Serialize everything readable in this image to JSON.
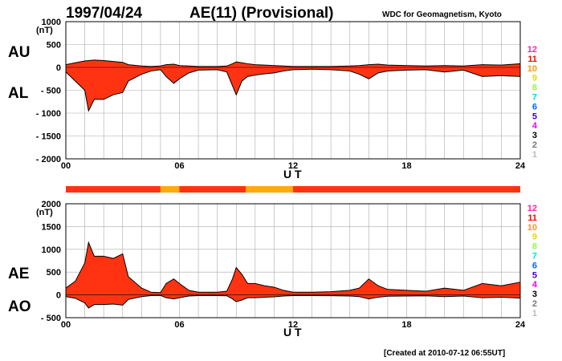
{
  "header": {
    "date": "1997/04/24",
    "title": "AE(11) (Provisional)",
    "source": "WDC for Geomagnetism, Kyoto"
  },
  "footer": {
    "created": "[Created at 2010-07-12 06:55UT]"
  },
  "colors": {
    "high": "#ff3311",
    "low": "#ffaa11",
    "outline": "#000000",
    "grid": "#aaaaaa",
    "hour_levels": [
      "#ff22aa",
      "#ff0000",
      "#ff9900",
      "#dddd00",
      "#88ff44",
      "#00dddd",
      "#0066ff",
      "#4400cc",
      "#ee00ee",
      "#000000",
      "#777777",
      "#bbbbbb"
    ]
  },
  "legend_levels": [
    "12",
    "11",
    "10",
    "9",
    "8",
    "7",
    "6",
    "5",
    "4",
    "3",
    "2",
    "1"
  ],
  "status_bar": [
    {
      "from": 0,
      "to": 5,
      "level": "high"
    },
    {
      "from": 5,
      "to": 6,
      "level": "low"
    },
    {
      "from": 6,
      "to": 9.5,
      "level": "high"
    },
    {
      "from": 9.5,
      "to": 12,
      "level": "low"
    },
    {
      "from": 12,
      "to": 24,
      "level": "high"
    }
  ],
  "chart_data": [
    {
      "type": "area",
      "series_labels": [
        "AU",
        "AL"
      ],
      "xlabel": "U T",
      "ylabel": "(nT)",
      "xlim": [
        0,
        24
      ],
      "ylim": [
        -2000,
        1000
      ],
      "x_ticks": [
        "00",
        "06",
        "12",
        "18",
        "24"
      ],
      "y_ticks": [
        "1000",
        "500",
        "0",
        "- 500",
        "- 1000",
        "- 1500",
        "- 2000"
      ],
      "grid": true,
      "x": [
        0,
        0.5,
        1,
        1.2,
        1.5,
        2,
        2.5,
        3,
        3.3,
        4,
        4.5,
        5,
        5.3,
        5.7,
        6,
        6.5,
        7,
        8,
        8.5,
        8.8,
        9,
        9.3,
        9.6,
        10,
        10.5,
        11,
        11.5,
        12,
        13,
        14,
        15,
        15.5,
        16,
        16.5,
        17,
        18,
        19,
        20,
        21,
        22,
        23,
        24
      ],
      "upper": [
        60,
        100,
        140,
        150,
        160,
        150,
        130,
        110,
        60,
        30,
        20,
        30,
        60,
        70,
        40,
        30,
        20,
        20,
        30,
        80,
        120,
        100,
        80,
        60,
        50,
        40,
        30,
        20,
        20,
        20,
        30,
        40,
        60,
        70,
        50,
        40,
        30,
        40,
        30,
        60,
        50,
        80
      ],
      "lower": [
        -100,
        -300,
        -500,
        -950,
        -700,
        -700,
        -600,
        -550,
        -300,
        -150,
        -80,
        -50,
        -200,
        -350,
        -250,
        -120,
        -60,
        -50,
        -100,
        -400,
        -600,
        -300,
        -200,
        -170,
        -140,
        -120,
        -80,
        -50,
        -40,
        -50,
        -80,
        -150,
        -250,
        -120,
        -80,
        -60,
        -50,
        -100,
        -60,
        -200,
        -180,
        -200
      ]
    },
    {
      "type": "area",
      "series_labels": [
        "AE",
        "AO"
      ],
      "xlabel": "U T",
      "ylabel": "(nT)",
      "xlim": [
        0,
        24
      ],
      "ylim": [
        -500,
        2000
      ],
      "x_ticks": [
        "00",
        "06",
        "12",
        "18",
        "24"
      ],
      "y_ticks": [
        "2000",
        "1500",
        "1000",
        "500",
        "0",
        "- 500"
      ],
      "grid": true,
      "x": [
        0,
        0.5,
        1,
        1.2,
        1.5,
        2,
        2.5,
        3,
        3.3,
        4,
        4.5,
        5,
        5.3,
        5.7,
        6,
        6.5,
        7,
        8,
        8.5,
        8.8,
        9,
        9.3,
        9.6,
        10,
        10.5,
        11,
        11.5,
        12,
        13,
        14,
        15,
        15.5,
        16,
        16.5,
        17,
        18,
        19,
        20,
        21,
        22,
        23,
        24
      ],
      "upper": [
        150,
        300,
        700,
        1150,
        850,
        850,
        800,
        900,
        400,
        150,
        60,
        50,
        250,
        350,
        250,
        100,
        60,
        60,
        80,
        350,
        600,
        450,
        250,
        250,
        200,
        170,
        100,
        60,
        60,
        70,
        100,
        150,
        350,
        200,
        120,
        100,
        80,
        150,
        100,
        250,
        200,
        280
      ]
    }
  ]
}
